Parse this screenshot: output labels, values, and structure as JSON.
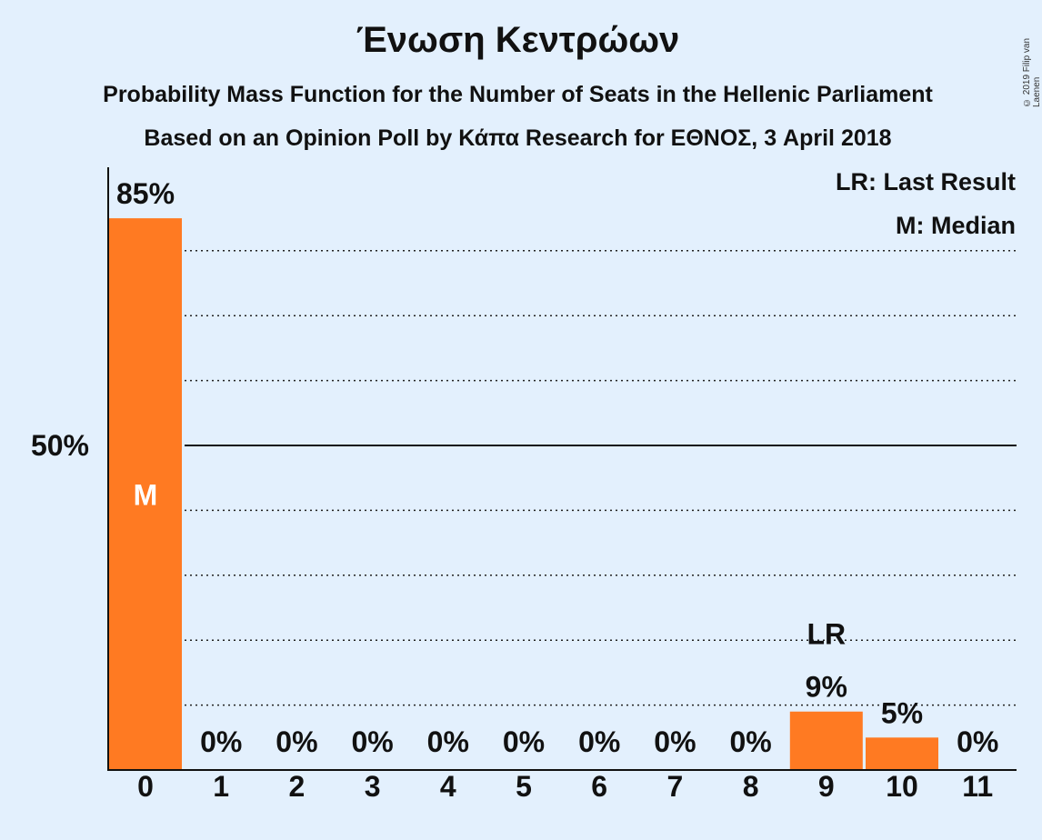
{
  "chart_data": {
    "type": "bar",
    "title": "Ένωση Κεντρώων",
    "subtitle": "Probability Mass Function for the Number of Seats in the Hellenic Parliament",
    "subtitle2": "Based on an Opinion Poll by Κάπα Research for ΕΘΝΟΣ, 3 April 2018",
    "categories": [
      "0",
      "1",
      "2",
      "3",
      "4",
      "5",
      "6",
      "7",
      "8",
      "9",
      "10",
      "11"
    ],
    "values": [
      85,
      0,
      0,
      0,
      0,
      0,
      0,
      0,
      0,
      9,
      5,
      0
    ],
    "value_labels": [
      "85%",
      "0%",
      "0%",
      "0%",
      "0%",
      "0%",
      "0%",
      "0%",
      "0%",
      "9%",
      "5%",
      "0%"
    ],
    "ylim": [
      0,
      89
    ],
    "y_ticks": [
      {
        "value": 50,
        "label": "50%"
      }
    ],
    "gridlines": [
      10,
      20,
      30,
      40,
      60,
      70,
      80
    ],
    "solid_gridline": 50,
    "median_index": 0,
    "median_marker": "M",
    "last_result_index": 9,
    "last_result_marker": "LR",
    "legend": [
      "LR: Last Result",
      "M: Median"
    ],
    "legend_position": "top-right",
    "bar_color": "#ff7a22"
  },
  "copyright": "© 2019 Filip van Laenen"
}
